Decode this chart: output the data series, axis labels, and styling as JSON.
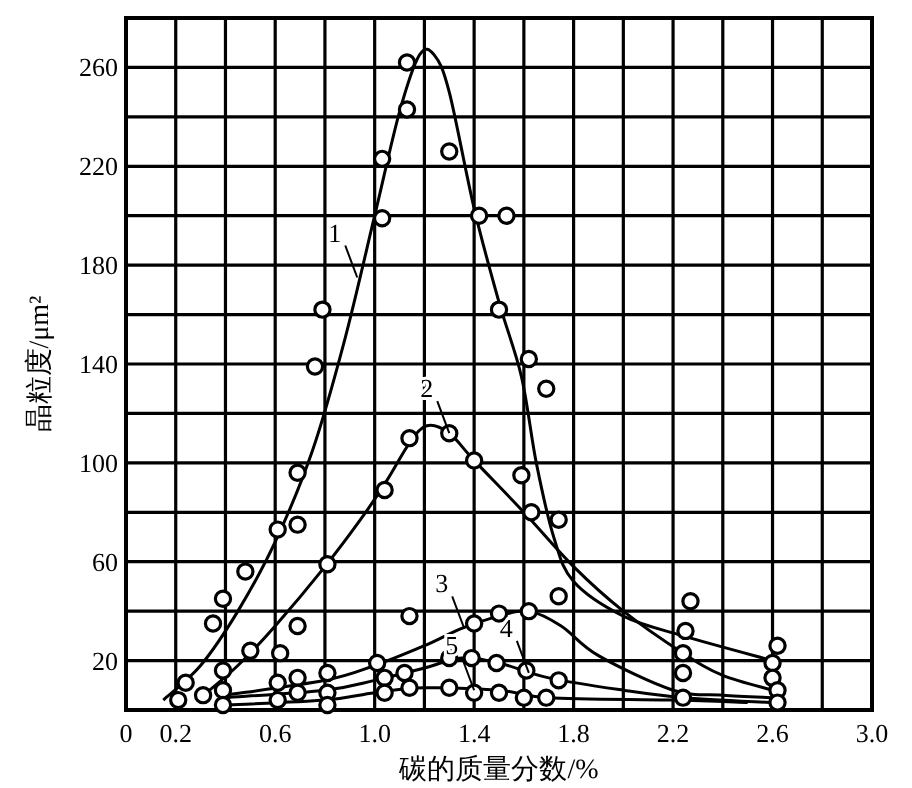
{
  "chart_data": {
    "type": "line",
    "xlabel": "碳的质量分数/%",
    "ylabel": "晶粒度/μm²",
    "xlim": [
      0,
      3.0
    ],
    "ylim": [
      0,
      280
    ],
    "xticks": [
      0,
      0.2,
      {
        "value": 0.4,
        "label": null
      },
      0.6,
      {
        "value": 0.8,
        "label": null
      },
      {
        "value": 1,
        "label": "1.0"
      },
      {
        "value": 1.2,
        "label": null
      },
      1.4,
      {
        "value": 1.6,
        "label": null
      },
      1.8,
      {
        "value": 2,
        "label": null
      },
      2.2,
      {
        "value": 2.4,
        "label": null
      },
      2.6,
      {
        "value": 2.8,
        "label": null
      },
      {
        "value": 3,
        "label": "3.0"
      }
    ],
    "yticks": [
      {
        "value": 0,
        "label": null
      },
      20,
      {
        "value": 40,
        "label": null
      },
      60,
      {
        "value": 80,
        "label": null
      },
      100,
      {
        "value": 120,
        "label": null
      },
      140,
      {
        "value": 160,
        "label": null
      },
      180,
      {
        "value": 200,
        "label": null
      },
      220,
      {
        "value": 240,
        "label": null
      },
      260,
      {
        "value": 280,
        "label": null
      }
    ],
    "grid": true,
    "series": [
      {
        "type": "line",
        "color": "#000000",
        "marker": "none",
        "x": [
          0.15,
          0.3,
          0.45,
          0.6,
          0.75,
          0.88,
          1.0,
          1.1,
          1.18,
          1.24,
          1.3,
          1.4,
          1.5,
          1.59,
          1.65,
          1.72,
          1.8,
          2.0,
          2.24,
          2.6
        ],
        "values": [
          4,
          18,
          40,
          68,
          105,
          150,
          200,
          242,
          265,
          265,
          250,
          203,
          165,
          135,
          100,
          70,
          52,
          38,
          30,
          20
        ]
      },
      {
        "type": "line",
        "color": "#000000",
        "marker": "none",
        "x": [
          0.3,
          0.45,
          0.6,
          0.8,
          0.95,
          1.05,
          1.14,
          1.21,
          1.3,
          1.4,
          1.6,
          1.8,
          2.0,
          2.24,
          2.4,
          2.6
        ],
        "values": [
          5,
          18,
          34,
          58,
          78,
          93,
          108,
          115,
          112,
          101,
          80,
          58,
          40,
          23,
          14,
          8
        ]
      },
      {
        "type": "line",
        "color": "#000000",
        "marker": "none",
        "x": [
          0.4,
          0.8,
          1.0,
          1.2,
          1.35,
          1.5,
          1.62,
          1.75,
          1.9,
          2.2,
          2.4,
          2.6
        ],
        "values": [
          6,
          12,
          18,
          26,
          33,
          38,
          40,
          34,
          22,
          8,
          6,
          5
        ]
      },
      {
        "type": "line",
        "color": "#000000",
        "marker": "none",
        "x": [
          0.4,
          0.8,
          1.0,
          1.2,
          1.35,
          1.5,
          1.7,
          2.0,
          2.24,
          2.6
        ],
        "values": [
          5,
          8,
          12,
          17,
          21,
          19,
          13,
          8,
          5,
          3
        ]
      },
      {
        "type": "line",
        "color": "#000000",
        "marker": "none",
        "x": [
          0.4,
          0.8,
          1.0,
          1.2,
          1.5,
          1.7,
          2.2,
          2.5
        ],
        "values": [
          2,
          4,
          7,
          9,
          8,
          5,
          4,
          3
        ]
      },
      {
        "type": "scatter",
        "color": "#000000",
        "marker": "circle",
        "x": [
          1.13,
          1.13,
          1.03,
          1.03,
          0.79,
          0.76,
          1.3,
          1.42,
          1.5,
          1.53,
          1.62,
          1.69,
          0.69,
          0.61,
          0.69,
          0.48,
          0.39,
          0.35,
          0.24,
          0.21,
          0.39,
          0.39,
          0.39,
          0.31,
          0.5,
          0.62,
          0.69,
          0.81,
          1.04,
          1.14,
          1.3,
          1.4,
          1.14,
          1.4,
          1.5,
          0.61,
          0.61,
          0.69,
          0.69,
          0.81,
          0.81,
          0.81,
          1.01,
          1.04,
          1.04,
          1.12,
          1.14,
          1.3,
          1.3,
          1.39,
          1.4,
          1.5,
          1.59,
          1.63,
          1.74,
          1.74,
          1.62,
          1.49,
          1.61,
          1.74,
          1.6,
          1.69,
          2.27,
          2.25,
          2.24,
          2.24,
          2.24,
          2.62,
          2.6,
          2.6,
          2.62,
          2.62
        ],
        "values": [
          262,
          243,
          223,
          199,
          162,
          139,
          226,
          200,
          162,
          200,
          142,
          130,
          96,
          73,
          75,
          56,
          45,
          35,
          11,
          4,
          16,
          8,
          2,
          6,
          24,
          23,
          34,
          59,
          89,
          110,
          112,
          101,
          38,
          35,
          39,
          11,
          4,
          13,
          7,
          15,
          7,
          2,
          19,
          13,
          7,
          15,
          9,
          21,
          9,
          21,
          7,
          7,
          95,
          80,
          77,
          46,
          40,
          19,
          16,
          12,
          5,
          5,
          44,
          32,
          23,
          15,
          5,
          26,
          19,
          13,
          8,
          3
        ]
      }
    ],
    "annotations": [
      {
        "text": "1",
        "x": 0.93,
        "y": 175
      },
      {
        "text": "2",
        "x": 1.3,
        "y": 112
      },
      {
        "text": "3",
        "x": 1.36,
        "y": 33
      },
      {
        "text": "4",
        "x": 1.62,
        "y": 15
      },
      {
        "text": "5",
        "x": 1.4,
        "y": 8
      }
    ]
  }
}
